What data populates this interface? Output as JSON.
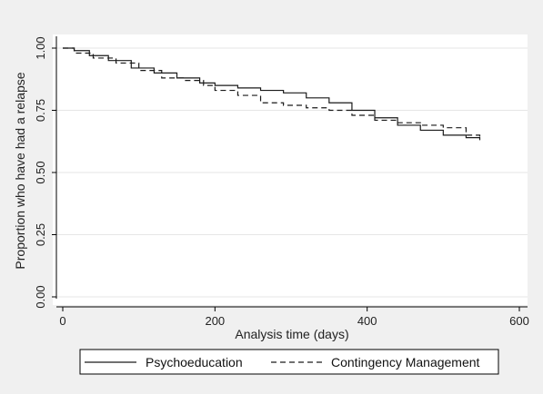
{
  "chart_data": {
    "type": "line",
    "title": "",
    "xlabel": "Analysis time (days)",
    "ylabel": "Proportion who have had a relapse",
    "xlim": [
      0,
      600
    ],
    "ylim": [
      0,
      1
    ],
    "x_ticks": [
      {
        "value": 0,
        "label": "0"
      },
      {
        "value": 200,
        "label": "200"
      },
      {
        "value": 400,
        "label": "400"
      },
      {
        "value": 600,
        "label": "600"
      }
    ],
    "y_ticks": [
      {
        "value": 0.0,
        "label": "0.00"
      },
      {
        "value": 0.25,
        "label": "0.25"
      },
      {
        "value": 0.5,
        "label": "0.50"
      },
      {
        "value": 0.75,
        "label": "0.75"
      },
      {
        "value": 1.0,
        "label": "1.00"
      }
    ],
    "grid": true,
    "legend_position": "bottom",
    "series": [
      {
        "name": "Psychoeducation",
        "style": "solid",
        "color": "#1a1a1a",
        "x": [
          0,
          15,
          35,
          60,
          90,
          120,
          150,
          180,
          200,
          230,
          260,
          290,
          320,
          350,
          380,
          410,
          440,
          470,
          500,
          530,
          548
        ],
        "y": [
          1.0,
          0.99,
          0.97,
          0.95,
          0.92,
          0.9,
          0.88,
          0.86,
          0.85,
          0.84,
          0.83,
          0.82,
          0.8,
          0.78,
          0.75,
          0.72,
          0.69,
          0.67,
          0.65,
          0.64,
          0.63
        ]
      },
      {
        "name": "Contingency Management",
        "style": "dashed",
        "color": "#1a1a1a",
        "x": [
          0,
          15,
          40,
          70,
          100,
          130,
          160,
          185,
          200,
          230,
          260,
          290,
          320,
          350,
          380,
          410,
          440,
          470,
          500,
          530,
          548
        ],
        "y": [
          1.0,
          0.98,
          0.96,
          0.94,
          0.91,
          0.88,
          0.87,
          0.85,
          0.83,
          0.81,
          0.78,
          0.77,
          0.76,
          0.75,
          0.73,
          0.71,
          0.7,
          0.69,
          0.68,
          0.65,
          0.63
        ]
      }
    ]
  }
}
